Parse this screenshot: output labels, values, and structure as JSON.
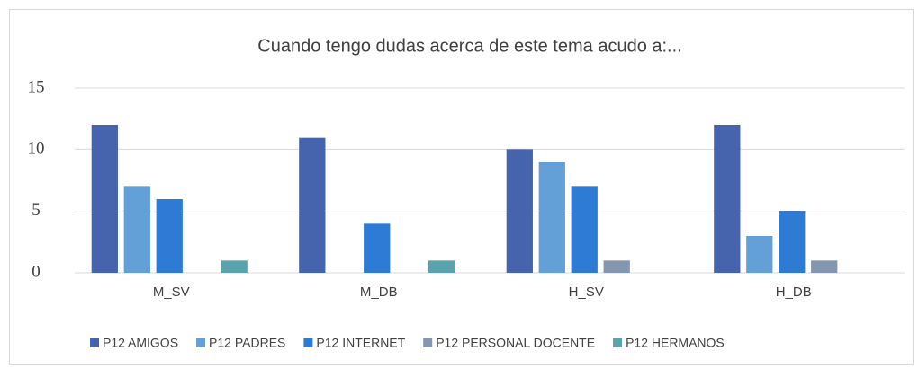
{
  "chart_data": {
    "type": "bar",
    "title": "Cuando tengo dudas acerca de este tema acudo a:...",
    "categories": [
      "M_SV",
      "M_DB",
      "H_SV",
      "H_DB"
    ],
    "series": [
      {
        "name": "P12 AMIGOS",
        "color": "#4664ae",
        "values": [
          12,
          11,
          10,
          12
        ]
      },
      {
        "name": "P12 PADRES",
        "color": "#64a0d8",
        "values": [
          7,
          0,
          9,
          3
        ]
      },
      {
        "name": "P12 INTERNET",
        "color": "#2e7bd6",
        "values": [
          6,
          4,
          7,
          5
        ]
      },
      {
        "name": "P12 PERSONAL DOCENTE",
        "color": "#8497b0",
        "values": [
          0,
          0,
          1,
          1
        ]
      },
      {
        "name": "P12 HERMANOS",
        "color": "#5aa2ae",
        "values": [
          1,
          1,
          0,
          0
        ]
      }
    ],
    "ylim": [
      0,
      15
    ],
    "yticks": [
      0,
      5,
      10,
      15
    ],
    "grid": true,
    "legend": "bottom"
  }
}
